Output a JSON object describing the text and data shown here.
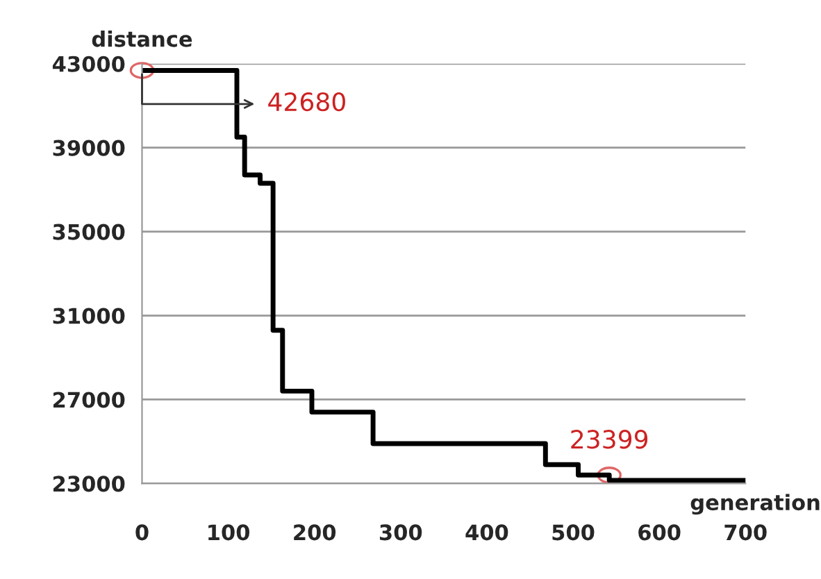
{
  "chart_data": {
    "type": "step",
    "xlabel": "generation",
    "ylabel": "distance",
    "series": [
      {
        "color": "#000000",
        "x": [
          0,
          110,
          119,
          137,
          152,
          163,
          197,
          268,
          468,
          506,
          542,
          700
        ],
        "values": [
          42680,
          39500,
          37700,
          37300,
          30300,
          27400,
          26400,
          24900,
          23900,
          23400,
          23150,
          23150
        ]
      }
    ],
    "annotations": [
      {
        "text": "42680",
        "x": 0,
        "y": 42680
      },
      {
        "text": "23399",
        "x": 542,
        "y": 23399
      }
    ],
    "xlim": [
      0,
      700
    ],
    "xticks": [
      0,
      100,
      200,
      300,
      400,
      500,
      600,
      700
    ],
    "ylim": [
      23000,
      43000
    ],
    "yticks": [
      23000,
      27000,
      31000,
      35000,
      39000,
      43000
    ],
    "grid": "y",
    "legend": false,
    "line_style": "solid"
  }
}
